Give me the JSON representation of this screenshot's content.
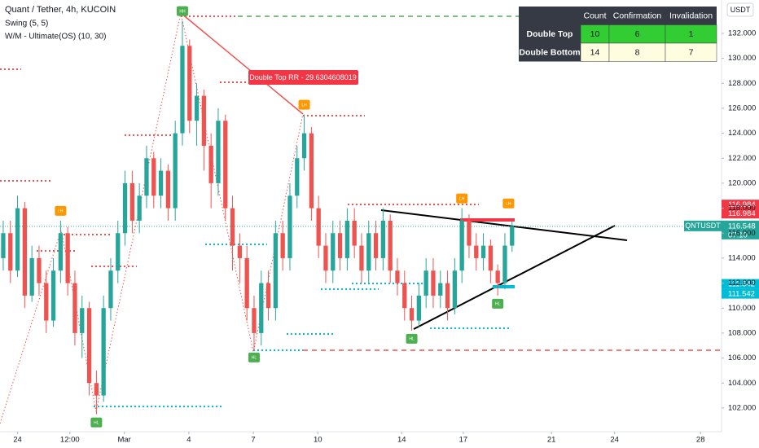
{
  "chart_data": {
    "type": "candlestick",
    "title": "Quant / Tether, 4h, KUCOIN",
    "indicators": [
      "Swing (5, 5)",
      "W/M - Ultimate(OS) (10, 30)"
    ],
    "currency_button": "USDT",
    "annotation": "Double Top RR - 29.6304608019",
    "up_color": "#26a69a",
    "down_color": "#ef5350",
    "x": [
      0,
      1,
      2,
      3,
      4,
      5,
      6,
      7,
      8,
      9,
      10,
      11,
      12,
      13,
      14,
      15,
      16,
      17,
      18,
      19,
      20,
      21,
      22,
      23,
      24,
      25,
      26,
      27,
      28,
      29,
      30,
      31,
      32,
      33,
      34,
      35,
      36,
      37,
      38,
      39,
      40,
      41,
      42,
      43,
      44,
      45,
      46,
      47,
      48,
      49,
      50,
      51,
      52,
      53,
      54,
      55,
      56,
      57,
      58,
      59,
      60,
      61,
      62,
      63,
      64,
      65,
      66,
      67,
      68,
      69,
      70,
      71
    ],
    "open": [
      114,
      116,
      113,
      118,
      111,
      114,
      112,
      109,
      113,
      116,
      112,
      108,
      110,
      104,
      103,
      110,
      113,
      116,
      120,
      117,
      119,
      122,
      119,
      121,
      118,
      124,
      131,
      125,
      127,
      123,
      120,
      125,
      118,
      115,
      114,
      110,
      108,
      112,
      110,
      116,
      114,
      119,
      122,
      124,
      118,
      115,
      113,
      116,
      114,
      117,
      115,
      113,
      116,
      114,
      117,
      113,
      112,
      110,
      109,
      111,
      113,
      111,
      112,
      110,
      113,
      117,
      115,
      114,
      115,
      113,
      112,
      115
    ],
    "high": [
      117,
      117,
      119,
      118.5,
      115,
      115,
      113,
      114,
      117,
      116.5,
      113,
      111,
      110.5,
      105,
      111,
      114,
      117,
      121,
      121,
      120,
      123,
      122.5,
      122,
      121.5,
      125,
      133,
      131.5,
      128,
      127.5,
      124,
      126,
      125.5,
      119,
      116,
      115,
      111,
      113,
      113,
      117,
      117,
      120,
      123,
      125.5,
      124.5,
      119,
      116,
      117,
      117,
      118,
      118,
      116,
      117,
      117,
      118,
      117.5,
      114,
      113,
      111,
      112,
      114,
      114,
      113,
      113,
      114,
      118,
      117.5,
      116,
      116,
      115.5,
      113.5,
      116,
      117
    ],
    "low": [
      113,
      112,
      112.5,
      110,
      110.5,
      111,
      108,
      108.5,
      112,
      111,
      107,
      106,
      103,
      101.5,
      102.5,
      109,
      112,
      115,
      116,
      116,
      118,
      118,
      118,
      117,
      117,
      123,
      124,
      123,
      121,
      118,
      119,
      117,
      113,
      112,
      109,
      106.7,
      107,
      109,
      109,
      113,
      113,
      118,
      121,
      117,
      114,
      112,
      112,
      113,
      113,
      114,
      112,
      112,
      113,
      113,
      112,
      111,
      109,
      108.2,
      108.5,
      110,
      110,
      110,
      109,
      109.5,
      112,
      114,
      113,
      113,
      112,
      111,
      111.5,
      114.5
    ],
    "close": [
      116,
      113,
      118,
      111,
      114,
      112,
      109,
      113,
      116,
      112,
      108,
      110,
      104,
      103,
      110,
      113,
      116,
      120,
      117,
      119,
      122,
      119,
      121,
      118,
      124,
      131,
      125,
      127,
      123,
      120,
      125,
      118,
      115,
      114,
      110,
      108,
      112,
      110,
      116,
      114,
      119,
      122,
      124,
      118,
      115,
      113,
      116,
      114,
      117,
      115,
      113,
      116,
      114,
      117,
      113,
      112,
      110,
      109,
      111,
      113,
      111,
      112,
      110,
      113,
      117,
      115,
      114,
      115,
      113,
      112,
      115,
      116.548
    ],
    "xlim": [
      -0.45,
      100.23
    ],
    "xticks": [
      {
        "value": 2.0,
        "label": "24"
      },
      {
        "value": 9.3,
        "label": "12:00"
      },
      {
        "value": 16.9,
        "label": "Mar"
      },
      {
        "value": 25.9,
        "label": "4"
      },
      {
        "value": 34.9,
        "label": "7"
      },
      {
        "value": 43.9,
        "label": "10"
      },
      {
        "value": 55.6,
        "label": "14"
      },
      {
        "value": 64.2,
        "label": "17"
      },
      {
        "value": 76.5,
        "label": "21"
      },
      {
        "value": 85.3,
        "label": "24"
      },
      {
        "value": 97.3,
        "label": "28"
      }
    ],
    "ylim": [
      99.45,
      134.67
    ],
    "yticks": [
      {
        "value": 102,
        "label": "102.000"
      },
      {
        "value": 104,
        "label": "104.000"
      },
      {
        "value": 106,
        "label": "106.000"
      },
      {
        "value": 108,
        "label": "108.000"
      },
      {
        "value": 110,
        "label": "110.000"
      },
      {
        "value": 112,
        "label": "112.000"
      },
      {
        "value": 114,
        "label": "114.000"
      },
      {
        "value": 116,
        "label": "116.000"
      },
      {
        "value": 118,
        "label": "118.000"
      },
      {
        "value": 120,
        "label": "120.000"
      },
      {
        "value": 122,
        "label": "122.000"
      },
      {
        "value": 124,
        "label": "124.000"
      },
      {
        "value": 126,
        "label": "126.000"
      },
      {
        "value": 128,
        "label": "128.000"
      },
      {
        "value": 130,
        "label": "130.000"
      },
      {
        "value": 132,
        "label": "132.000"
      }
    ],
    "grid": false,
    "markers": [
      {
        "label": "HH",
        "x": 25,
        "price": 133,
        "color": "#4caf50"
      },
      {
        "label": "LH",
        "x": 8,
        "price": 117,
        "color": "#ff9800"
      },
      {
        "label": "HL",
        "x": 13,
        "price": 101.5,
        "color": "#4caf50"
      },
      {
        "label": "LH",
        "x": 42,
        "price": 125.5,
        "color": "#ff9800"
      },
      {
        "label": "HL",
        "x": 35,
        "price": 106.7,
        "color": "#4caf50"
      },
      {
        "label": "HL",
        "x": 57,
        "price": 108.2,
        "color": "#4caf50"
      },
      {
        "label": "LH",
        "x": 64,
        "price": 118,
        "color": "#ff9800"
      },
      {
        "label": "LH",
        "x": 70.5,
        "price": 117.6,
        "color": "#ff9800"
      },
      {
        "label": "HL",
        "x": 69,
        "price": 111,
        "color": "#4caf50"
      }
    ],
    "symbol": "QNTUSDT",
    "countdown": "07:10",
    "price_tags": [
      {
        "value": 116.984,
        "label": "116.984",
        "color": "#f23645"
      },
      {
        "value": 116.984,
        "label": "116.984",
        "color": "#f23645"
      },
      {
        "value": 111.542,
        "label": "111.542",
        "color": "#00bcd4"
      },
      {
        "value": 111.542,
        "label": "111.542",
        "color": "#00bcd4"
      }
    ],
    "table": {
      "columns": [
        "Count",
        "Confirmation",
        "Invalidation"
      ],
      "rows": [
        {
          "name": "Double Top",
          "values": [
            10,
            6,
            1
          ]
        },
        {
          "name": "Double Bottom",
          "values": [
            14,
            8,
            7
          ]
        }
      ]
    }
  }
}
